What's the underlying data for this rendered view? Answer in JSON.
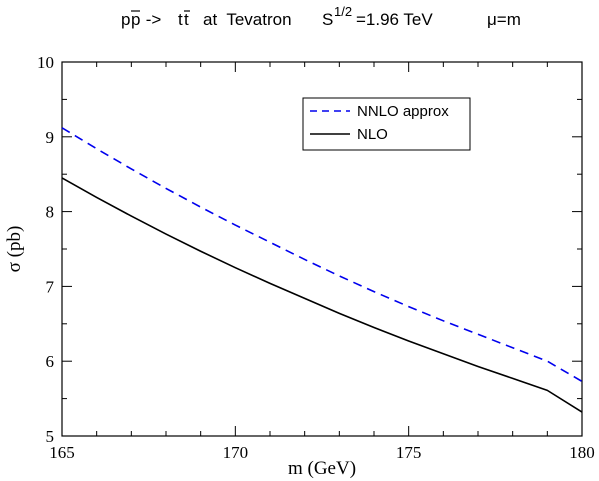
{
  "chart_data": {
    "type": "line",
    "title": {
      "process_p": "p",
      "process_pbar": "p",
      "arrow": " -> ",
      "process_t": "t",
      "process_tbar": "t",
      "at_text": "at  Tevatron",
      "s_base": "S",
      "s_sup": "1/2",
      "s_value": "=1.96 TeV",
      "scale": "μ=m"
    },
    "xlabel": "m (GeV)",
    "ylabel": "σ (pb)",
    "xlim": [
      165,
      180
    ],
    "ylim": [
      5,
      10
    ],
    "xticks": [
      "165",
      "170",
      "175",
      "180"
    ],
    "yticks": [
      "5",
      "6",
      "7",
      "8",
      "9",
      "10"
    ],
    "legend_position": "top-right",
    "series": [
      {
        "name": "NNLO approx",
        "color": "#0000ee",
        "dash": "dashed",
        "x": [
          165,
          166,
          167,
          168,
          169,
          170,
          171,
          172,
          173,
          174,
          175,
          176,
          177,
          178,
          179,
          180
        ],
        "y": [
          9.12,
          8.84,
          8.57,
          8.31,
          8.06,
          7.82,
          7.59,
          7.36,
          7.14,
          6.93,
          6.73,
          6.54,
          6.36,
          6.18,
          6.0,
          5.73
        ]
      },
      {
        "name": "NLO",
        "color": "#000000",
        "dash": "solid",
        "x": [
          165,
          166,
          167,
          168,
          169,
          170,
          171,
          172,
          173,
          174,
          175,
          176,
          177,
          178,
          179,
          180
        ],
        "y": [
          8.45,
          8.19,
          7.94,
          7.7,
          7.47,
          7.25,
          7.04,
          6.84,
          6.64,
          6.45,
          6.27,
          6.1,
          5.93,
          5.77,
          5.61,
          5.32
        ]
      }
    ]
  }
}
